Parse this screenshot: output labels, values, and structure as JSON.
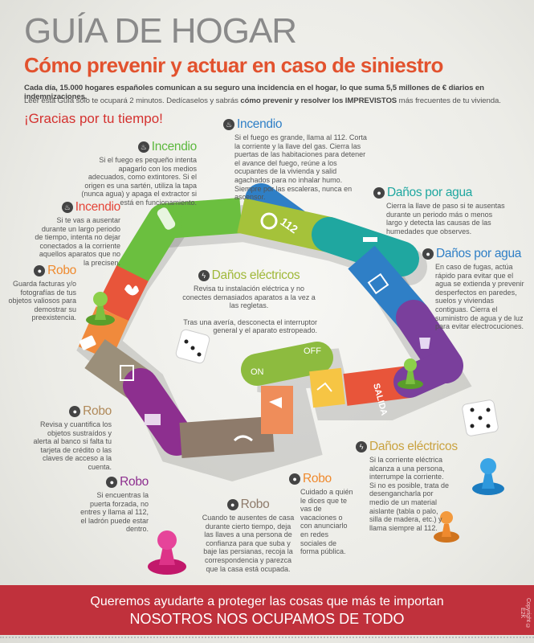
{
  "header": {
    "title": "GUÍA DE HOGAR",
    "subtitle": "Cómo prevenir y actuar en caso de siniestro",
    "intro_line1": "Cada día, 15.000 hogares españoles comunican a su seguro una incidencia en el hogar, lo que suma 5,5 millones de € diarios en indemnizaciones.",
    "intro_line2_a": "Leer esta Guía sólo te ocupará 2 minutos. Dedícaselos y sabrás ",
    "intro_line2_b": "cómo prevenir y resolver los IMPREVISTOS",
    "intro_line2_c": " más frecuentes de tu vivienda.",
    "thanks": "¡Gracias por tu tiempo!"
  },
  "colors": {
    "title": "#8a8a8a",
    "subtitle": "#e2522e",
    "thanks": "#d4312f",
    "banner": "#c0313c",
    "green": "#6bbf3f",
    "lime": "#a5c23a",
    "teal": "#1fa7a0",
    "blue": "#2f7fc6",
    "purple": "#7a3f9c",
    "magenta": "#8d2f8f",
    "orange": "#f08a3c",
    "red": "#e8553a",
    "brown": "#8e7b6b",
    "yellow": "#f6c544"
  },
  "tips": [
    {
      "id": "incendio-blue",
      "category": "Incendio",
      "icon": "fire-icon",
      "color": "#2f7fc6",
      "text": "Si el fuego es grande, llama al 112. Corta la corriente y la llave del gas. Cierra las puertas de las habitaciones para detener el avance del fuego, reúne a los ocupantes de la vivienda y salid agachados para no inhalar humo. Siempre por las escaleras, nunca en ascensor."
    },
    {
      "id": "incendio-green",
      "category": "Incendio",
      "icon": "fire-icon",
      "color": "#5cb83e",
      "text": "Si el fuego es pequeño intenta apagarlo con los medios adecuados, como extintores. Si el origen es una sartén, utiliza la tapa (nunca agua) y apaga el extractor si está en funcionamiento."
    },
    {
      "id": "incendio-red",
      "category": "Incendio",
      "icon": "fire-icon",
      "color": "#e5463a",
      "text": "Si te vas a ausentar durante un largo periodo de tiempo, intenta no dejar conectados a la corriente aquellos aparatos que no la precisen."
    },
    {
      "id": "robo-orange",
      "category": "Robo",
      "icon": "thief-icon",
      "color": "#ef8a2e",
      "text": "Guarda facturas y/o fotografías de tus objetos valiosos para demostrar su preexistencia."
    },
    {
      "id": "electricos-green",
      "category": "Daños eléctricos",
      "icon": "lightning-icon",
      "color": "#a0b83a",
      "text": "Revisa tu instalación eléctrica y no conectes demasiados aparatos a la vez a las regletas.",
      "text2": "Tras una avería, desconecta el interruptor general y el aparato estropeado."
    },
    {
      "id": "agua-teal",
      "category": "Daños por agua",
      "icon": "water-drop-icon",
      "color": "#1fa7a0",
      "text": "Cierra la llave de paso si te ausentas durante un periodo más o menos largo y detecta las causas de las humedades que observes."
    },
    {
      "id": "agua-blue",
      "category": "Daños por agua",
      "icon": "water-drop-icon",
      "color": "#2f7fc6",
      "text": "En caso de fugas, actúa rápido para evitar que el agua se extienda y prevenir desperfectos en paredes, suelos y viviendas contiguas. Cierra el suministro de agua y de luz para evitar electrocuciones."
    },
    {
      "id": "robo-brown",
      "category": "Robo",
      "icon": "thief-icon",
      "color": "#b08a5a",
      "text": "Revisa y cuantifica los objetos sustraídos y alerta al banco si falta tu tarjeta de crédito o las claves de acceso a la cuenta."
    },
    {
      "id": "robo-purple",
      "category": "Robo",
      "icon": "thief-icon",
      "color": "#8d2f8f",
      "text": "Si encuentras la puerta forzada, no entres y llama al 112, el ladrón puede estar dentro."
    },
    {
      "id": "robo-gray",
      "category": "Robo",
      "icon": "thief-icon",
      "color": "#8e7b6b",
      "text": "Cuando te ausentes de casa durante cierto tiempo, deja las llaves a una persona de confianza para que suba y baje las persianas, recoja la correspondencia y parezca que la casa está ocupada."
    },
    {
      "id": "robo-small",
      "category": "Robo",
      "icon": "thief-icon",
      "color": "#ef8a2e",
      "text": "Cuidado a quién le dices que te vas de vacaciones o con anunciarlo en redes sociales de forma pública."
    },
    {
      "id": "electricos-gold",
      "category": "Daños eléctricos",
      "icon": "lightning-icon",
      "color": "#c9a240",
      "text": "Si la corriente eléctrica alcanza a una persona, interrumpe la corriente. Si no es posible, trata de desengancharla por medio de un material aislante (tabla o palo, silla de madera, etc.) y llama siempre al 112."
    }
  ],
  "board": {
    "label_112": "112",
    "label_on": "ON",
    "label_off": "OFF",
    "label_salida": "SALIDA"
  },
  "banner": {
    "line1": "Queremos ayudarte a proteger las cosas que más te importan",
    "line2": "NOSOTROS NOS OCUPAMOS DE TODO",
    "copyright": "Copyright © E2K"
  }
}
